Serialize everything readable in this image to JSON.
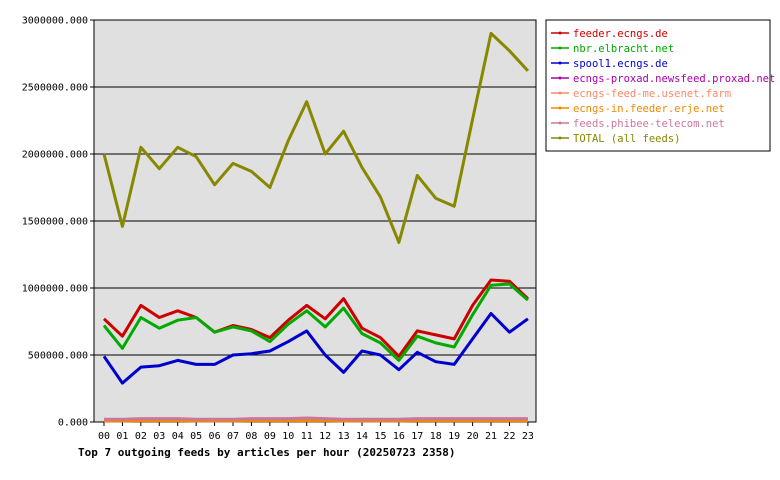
{
  "chart_data": {
    "type": "line",
    "title": "Top 7 outgoing feeds by articles per hour (20250723 2358)",
    "xlabel": "",
    "ylabel": "",
    "ylim": [
      0,
      3000000
    ],
    "y_ticks": [
      0,
      500000,
      1000000,
      1500000,
      2000000,
      2500000,
      3000000
    ],
    "y_tick_labels": [
      "0.000",
      "500000.000",
      "1000000.000",
      "1500000.000",
      "2000000.000",
      "2500000.000",
      "3000000.000"
    ],
    "grid": true,
    "legend_position": "right",
    "categories": [
      "00",
      "01",
      "02",
      "03",
      "04",
      "05",
      "06",
      "07",
      "08",
      "09",
      "10",
      "11",
      "12",
      "13",
      "14",
      "15",
      "16",
      "17",
      "18",
      "19",
      "20",
      "21",
      "22",
      "23"
    ],
    "series": [
      {
        "name": "feeder.ecngs.de",
        "color": "#cc0000",
        "width": 3,
        "values": [
          770000,
          640000,
          870000,
          780000,
          830000,
          780000,
          670000,
          720000,
          690000,
          630000,
          760000,
          870000,
          770000,
          920000,
          700000,
          630000,
          490000,
          680000,
          650000,
          620000,
          870000,
          1060000,
          1050000,
          920000
        ]
      },
      {
        "name": "nbr.elbracht.net",
        "color": "#00aa00",
        "width": 3,
        "values": [
          720000,
          550000,
          780000,
          700000,
          760000,
          780000,
          670000,
          710000,
          680000,
          600000,
          730000,
          830000,
          710000,
          850000,
          660000,
          590000,
          460000,
          640000,
          590000,
          560000,
          800000,
          1020000,
          1030000,
          910000
        ]
      },
      {
        "name": "spool1.ecngs.de",
        "color": "#0000cc",
        "width": 3,
        "values": [
          490000,
          290000,
          410000,
          420000,
          460000,
          430000,
          430000,
          500000,
          510000,
          530000,
          600000,
          680000,
          500000,
          370000,
          530000,
          500000,
          390000,
          520000,
          450000,
          430000,
          620000,
          810000,
          670000,
          770000
        ]
      },
      {
        "name": "ecngs-proxad.newsfeed.proxad.net",
        "color": "#aa00aa",
        "width": 3,
        "values": [
          15000,
          15000,
          20000,
          20000,
          20000,
          15000,
          15000,
          15000,
          20000,
          20000,
          20000,
          25000,
          20000,
          15000,
          15000,
          15000,
          15000,
          20000,
          20000,
          20000,
          20000,
          20000,
          20000,
          20000
        ]
      },
      {
        "name": "ecngs-feed-me.usenet.farm",
        "color": "#ff8866",
        "width": 3,
        "values": [
          10000,
          10000,
          12000,
          12000,
          12000,
          10000,
          10000,
          10000,
          12000,
          12000,
          12000,
          15000,
          12000,
          10000,
          10000,
          10000,
          10000,
          12000,
          12000,
          12000,
          12000,
          12000,
          12000,
          12000
        ]
      },
      {
        "name": "ecngs-in.feeder.erje.net",
        "color": "#ee8800",
        "width": 3,
        "values": [
          8000,
          8000,
          9000,
          9000,
          9000,
          8000,
          8000,
          8000,
          9000,
          9000,
          9000,
          10000,
          9000,
          8000,
          8000,
          8000,
          8000,
          9000,
          9000,
          9000,
          9000,
          9000,
          9000,
          9000
        ]
      },
      {
        "name": "feeds.phibee-telecom.net",
        "color": "#cc7799",
        "width": 3,
        "values": [
          20000,
          20000,
          25000,
          25000,
          25000,
          20000,
          20000,
          20000,
          25000,
          25000,
          25000,
          30000,
          25000,
          20000,
          20000,
          20000,
          20000,
          25000,
          25000,
          25000,
          25000,
          25000,
          25000,
          25000
        ]
      },
      {
        "name": "TOTAL (all feeds)",
        "color": "#888800",
        "width": 3,
        "values": [
          2000000,
          1460000,
          2050000,
          1890000,
          2050000,
          1980000,
          1770000,
          1930000,
          1870000,
          1750000,
          2100000,
          2390000,
          2000000,
          2170000,
          1900000,
          1680000,
          1340000,
          1840000,
          1670000,
          1610000,
          2260000,
          2900000,
          2770000,
          2620000
        ]
      }
    ]
  }
}
